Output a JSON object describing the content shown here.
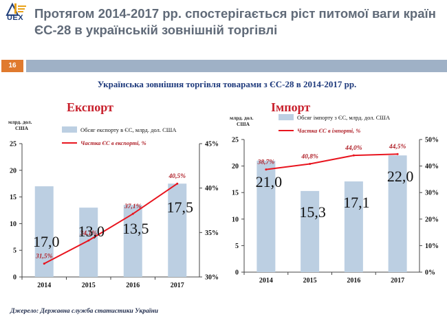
{
  "header": {
    "title": "Протягом 2014-2017 рр. спостерігається ріст питомої ваги країн ЄС-28 в українській зовнішній торгівлі",
    "slide_number": "16",
    "logo_text": "UEX"
  },
  "subtitle": "Українська зовнішня торгівля  товарами  з ЄС-28 в 2014-2017 рр.",
  "source_note": "Джерело: Державна служба статистики України",
  "colors": {
    "bar": "#bccfe2",
    "line": "#e8141e",
    "line_label": "#b0222a",
    "accent_title": "#c8202c"
  },
  "chart_data": [
    {
      "type": "bar",
      "title": "Експорт",
      "y_axis_unit_label": "млрд. дол. США",
      "categories": [
        "2014",
        "2015",
        "2016",
        "2017"
      ],
      "series": [
        {
          "name": "Обсяг експорту в ЄС, млрд. дол. США",
          "type": "bar",
          "axis": "left",
          "values": [
            17.0,
            13.0,
            13.5,
            17.5
          ],
          "data_labels": [
            "17,0",
            "13,0",
            "13,5",
            "17,5"
          ]
        },
        {
          "name": "Частка ЄС в експорті, %",
          "type": "line",
          "axis": "right",
          "values": [
            31.5,
            34.1,
            37.1,
            40.5
          ],
          "data_labels": [
            "31,5%",
            "34,1%",
            "37,1%",
            "40,5%"
          ]
        }
      ],
      "ylim": [
        0,
        25
      ],
      "yticks": [
        "0",
        "5",
        "10",
        "15",
        "20",
        "25"
      ],
      "y2lim": [
        30,
        45
      ],
      "y2ticks": [
        "30%",
        "35%",
        "40%",
        "45%"
      ],
      "legend_position": "top",
      "grid": false
    },
    {
      "type": "bar",
      "title": "Імпорт",
      "y_axis_unit_label": "млрд. дол. США",
      "categories": [
        "2014",
        "2015",
        "2016",
        "2017"
      ],
      "series": [
        {
          "name": "Обсяг імпорту з ЄС, млрд. дол. США",
          "type": "bar",
          "axis": "left",
          "values": [
            21.0,
            15.3,
            17.1,
            22.0
          ],
          "data_labels": [
            "21,0",
            "15,3",
            "17,1",
            "22,0"
          ]
        },
        {
          "name": "Частка ЄС в імпорті, %",
          "type": "line",
          "axis": "right",
          "values": [
            38.7,
            40.8,
            44.0,
            44.5
          ],
          "data_labels": [
            "38,7%",
            "40,8%",
            "44,0%",
            "44,5%"
          ]
        }
      ],
      "ylim": [
        0,
        25
      ],
      "yticks": [
        "0",
        "5",
        "10",
        "15",
        "20",
        "25"
      ],
      "y2lim": [
        0,
        50
      ],
      "y2ticks": [
        "0%",
        "10%",
        "20%",
        "30%",
        "40%",
        "50%"
      ],
      "legend_position": "top",
      "grid": false
    }
  ]
}
